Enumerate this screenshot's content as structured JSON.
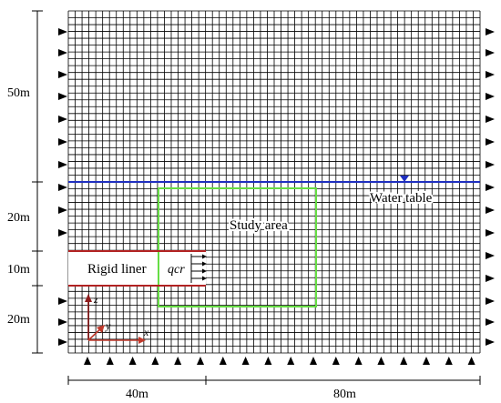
{
  "dimensions": {
    "vertical": [
      "50m",
      "20m",
      "10m",
      "20m"
    ],
    "horizontal": [
      "40m",
      "80m"
    ]
  },
  "labels": {
    "water_table": "Water table",
    "study_area": "Study area",
    "rigid_liner": "Rigid liner",
    "flux": "qcr",
    "axis_x": "x",
    "axis_y": "y",
    "axis_z": "z"
  },
  "colors": {
    "mesh": "#000000",
    "water_table_line": "#1f2fbf",
    "study_area_outline": "#66dd44",
    "liner": "#b22222",
    "axes": "#c0392b",
    "axes_z": "#8e1b1b",
    "flux_arrows": "#000000",
    "boundary_triangles": "#000000"
  },
  "icons": {
    "lateral_boundary": "solid-triangle-right-icon",
    "bottom_boundary": "solid-triangle-up-icon",
    "water_table_marker": "inverted-triangle-icon"
  }
}
